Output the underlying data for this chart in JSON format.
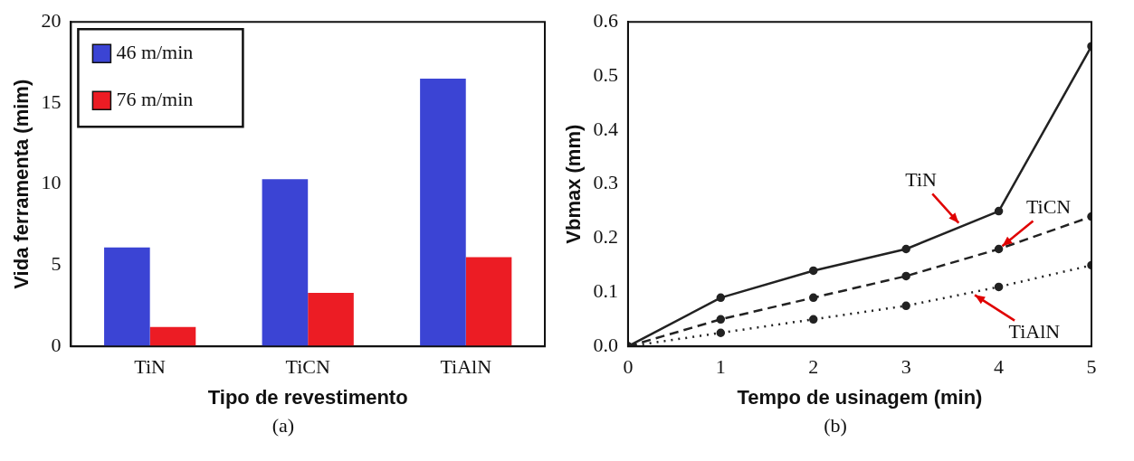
{
  "chart_data": [
    {
      "type": "bar",
      "xlabel": "Tipo de revestimento",
      "ylabel": "Vida ferramenta (mim)",
      "categories": [
        "TiN",
        "TiCN",
        "TiAlN"
      ],
      "series": [
        {
          "name": "46 m/min",
          "color": "#3b44d4",
          "values": [
            6.1,
            10.3,
            16.5
          ]
        },
        {
          "name": "76 m/min",
          "color": "#ec1c24",
          "values": [
            1.2,
            3.3,
            5.5
          ]
        }
      ],
      "ylim": [
        0,
        20
      ],
      "yticks": [
        0,
        5,
        10,
        15,
        20
      ],
      "grid": false,
      "legend": "top left",
      "annotations": [
        "(a)"
      ]
    },
    {
      "type": "line",
      "xlabel": "Tempo de usinagem (min)",
      "ylabel": "Vbmax (mm)",
      "x": [
        0,
        1,
        2,
        3,
        4,
        5
      ],
      "series": [
        {
          "name": "TiN",
          "color": "#222222",
          "line_style": "solid",
          "values": [
            0,
            0.09,
            0.14,
            0.18,
            0.25,
            0.555
          ]
        },
        {
          "name": "TiCN",
          "color": "#222222",
          "line_style": "dashed",
          "values": [
            0,
            0.05,
            0.09,
            0.13,
            0.18,
            0.24
          ]
        },
        {
          "name": "TiAlN",
          "color": "#222222",
          "line_style": "dotted",
          "values": [
            0,
            0.025,
            0.05,
            0.075,
            0.11,
            0.15
          ]
        }
      ],
      "xlim": [
        0,
        5
      ],
      "xticks": [
        0,
        1,
        2,
        3,
        4,
        5
      ],
      "ylim": [
        0,
        0.6
      ],
      "yticks": [
        {
          "value": 0,
          "label": "0.0"
        },
        0.1,
        0.2,
        0.3,
        0.4,
        0.5,
        0.6
      ],
      "grid": false,
      "legend": false,
      "marker": "circle",
      "annotations": [
        "(b)"
      ]
    }
  ]
}
